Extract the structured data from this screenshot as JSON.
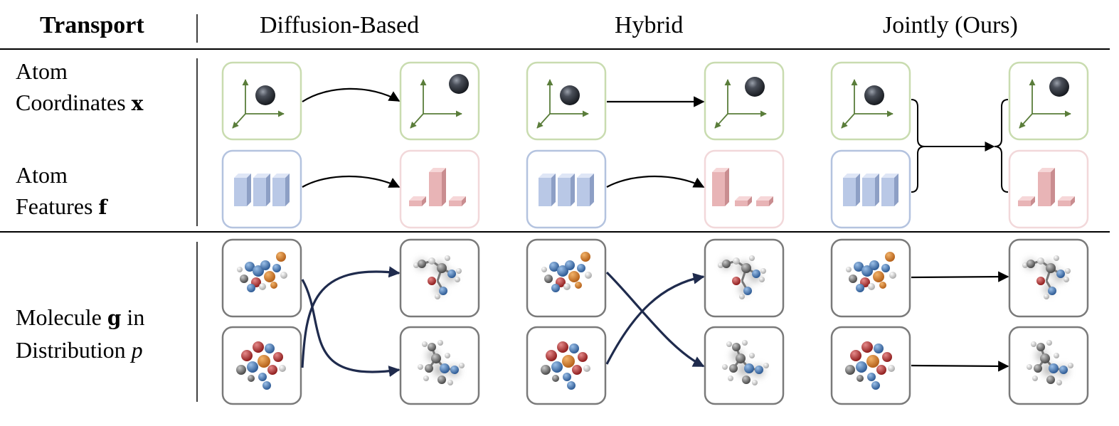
{
  "header": {
    "transport": "Transport",
    "col1": "Diffusion-Based",
    "col2": "Hybrid",
    "col3": "Jointly (Ours)"
  },
  "rows": {
    "coords": {
      "line1": "Atom",
      "line2_text": "Coordinates ",
      "line2_math": "x"
    },
    "features": {
      "line1": "Atom",
      "line2_text": "Features ",
      "line2_math": "f"
    },
    "molecule": {
      "line1_text": "Molecule ",
      "line1_math": "g",
      "line1_tail": " in",
      "line2_text": "Distribution ",
      "line2_math": "p"
    }
  },
  "colors": {
    "coord_box": "#c9dcb0",
    "feature_prior_box": "#b4c3df",
    "feature_target_box": "#f2d8da",
    "molecule_box": "#7a7a7a",
    "axis": "#5a7d3a",
    "prior_bar": "#b9c8e6",
    "target_bar": "#e8b4b6",
    "curved_arrow": "#1f2b4d",
    "arrow": "#000000"
  },
  "icons": [
    "axes-icon",
    "atom-sphere-icon",
    "bar-histogram-icon",
    "molecule-icon"
  ]
}
